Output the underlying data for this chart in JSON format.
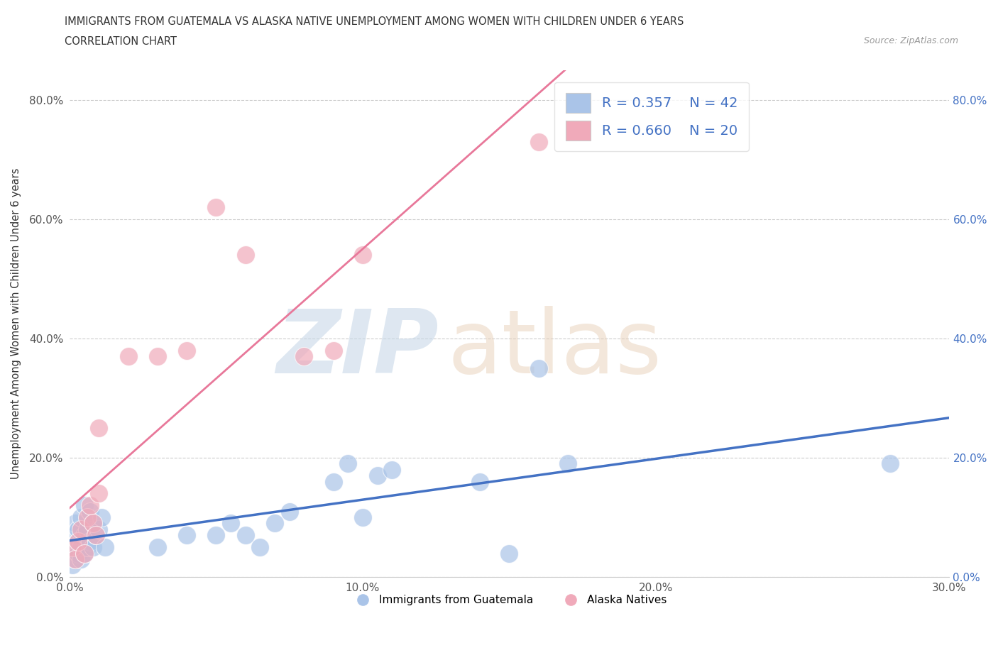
{
  "title_line1": "IMMIGRANTS FROM GUATEMALA VS ALASKA NATIVE UNEMPLOYMENT AMONG WOMEN WITH CHILDREN UNDER 6 YEARS",
  "title_line2": "CORRELATION CHART",
  "source_text": "Source: ZipAtlas.com",
  "ylabel": "Unemployment Among Women with Children Under 6 years",
  "xmin": 0.0,
  "xmax": 0.3,
  "ymin": 0.0,
  "ymax": 0.85,
  "yticks": [
    0.0,
    0.2,
    0.4,
    0.6,
    0.8
  ],
  "ytick_labels": [
    "0.0%",
    "20.0%",
    "40.0%",
    "60.0%",
    "80.0%"
  ],
  "xticks": [
    0.0,
    0.1,
    0.2,
    0.3
  ],
  "xtick_labels": [
    "0.0%",
    "10.0%",
    "20.0%",
    "30.0%"
  ],
  "blue_R": 0.357,
  "blue_N": 42,
  "pink_R": 0.66,
  "pink_N": 20,
  "blue_color": "#aac4e8",
  "pink_color": "#f0aaba",
  "blue_line_color": "#4472c4",
  "pink_line_color": "#e8789a",
  "legend_label_blue": "Immigrants from Guatemala",
  "legend_label_pink": "Alaska Natives",
  "blue_x": [
    0.001,
    0.001,
    0.002,
    0.002,
    0.002,
    0.003,
    0.003,
    0.003,
    0.004,
    0.004,
    0.004,
    0.005,
    0.005,
    0.005,
    0.006,
    0.006,
    0.007,
    0.007,
    0.008,
    0.008,
    0.009,
    0.01,
    0.011,
    0.012,
    0.03,
    0.04,
    0.05,
    0.055,
    0.06,
    0.065,
    0.07,
    0.075,
    0.09,
    0.095,
    0.1,
    0.105,
    0.11,
    0.14,
    0.15,
    0.16,
    0.17,
    0.28
  ],
  "blue_y": [
    0.02,
    0.05,
    0.03,
    0.07,
    0.09,
    0.04,
    0.06,
    0.08,
    0.03,
    0.05,
    0.1,
    0.04,
    0.07,
    0.12,
    0.05,
    0.08,
    0.06,
    0.11,
    0.05,
    0.09,
    0.07,
    0.08,
    0.1,
    0.05,
    0.05,
    0.07,
    0.07,
    0.09,
    0.07,
    0.05,
    0.09,
    0.11,
    0.16,
    0.19,
    0.1,
    0.17,
    0.18,
    0.16,
    0.04,
    0.35,
    0.19,
    0.19
  ],
  "pink_x": [
    0.001,
    0.002,
    0.003,
    0.004,
    0.005,
    0.006,
    0.007,
    0.008,
    0.009,
    0.01,
    0.01,
    0.02,
    0.03,
    0.04,
    0.05,
    0.06,
    0.08,
    0.09,
    0.1,
    0.16
  ],
  "pink_y": [
    0.05,
    0.03,
    0.06,
    0.08,
    0.04,
    0.1,
    0.12,
    0.09,
    0.07,
    0.25,
    0.14,
    0.37,
    0.37,
    0.38,
    0.62,
    0.54,
    0.37,
    0.38,
    0.54,
    0.73
  ]
}
